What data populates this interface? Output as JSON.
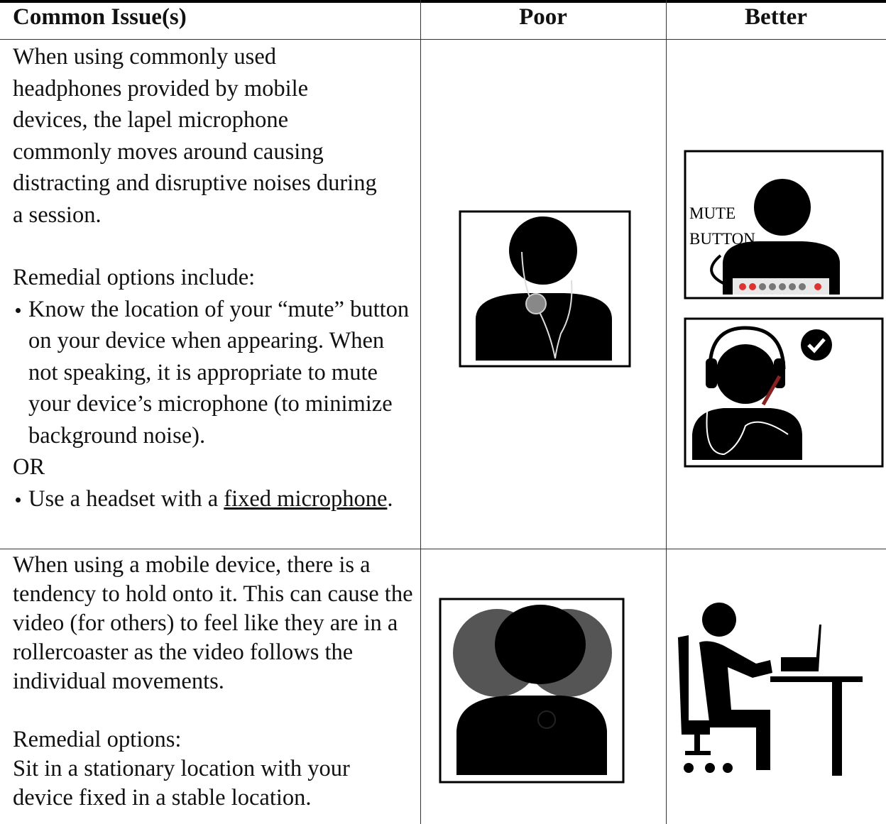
{
  "table": {
    "headers": [
      "Common Issue(s)",
      "Poor",
      "Better"
    ],
    "rows": [
      {
        "issue": {
          "paragraphs": [
            "When using commonly used headphones provided by mobile devices, the lapel microphone commonly moves around causing distracting and disruptive noises during a session.",
            "Remedial options include:"
          ],
          "bullets": [
            "Know the location of your “mute” button on your device when appearing. When not speaking, it is appropriate to mute your device’s microphone (to minimize background noise)."
          ],
          "separator": "OR",
          "last_bullet": {
            "text": "Use a headset with a ",
            "link": "fixed microphone",
            "end": "."
          }
        },
        "better_label": [
          "MUTE",
          "BUTTON"
        ]
      },
      {
        "issue": {
          "paragraphs": [
            "When using a mobile device, there is a tendency to hold onto it.  This can cause the video (for others) to feel like they are in a rollercoaster as the video follows the individual movements.",
            "Remedial options:",
            "Sit in a stationary location with your device fixed in a stable location."
          ]
        }
      }
    ]
  }
}
